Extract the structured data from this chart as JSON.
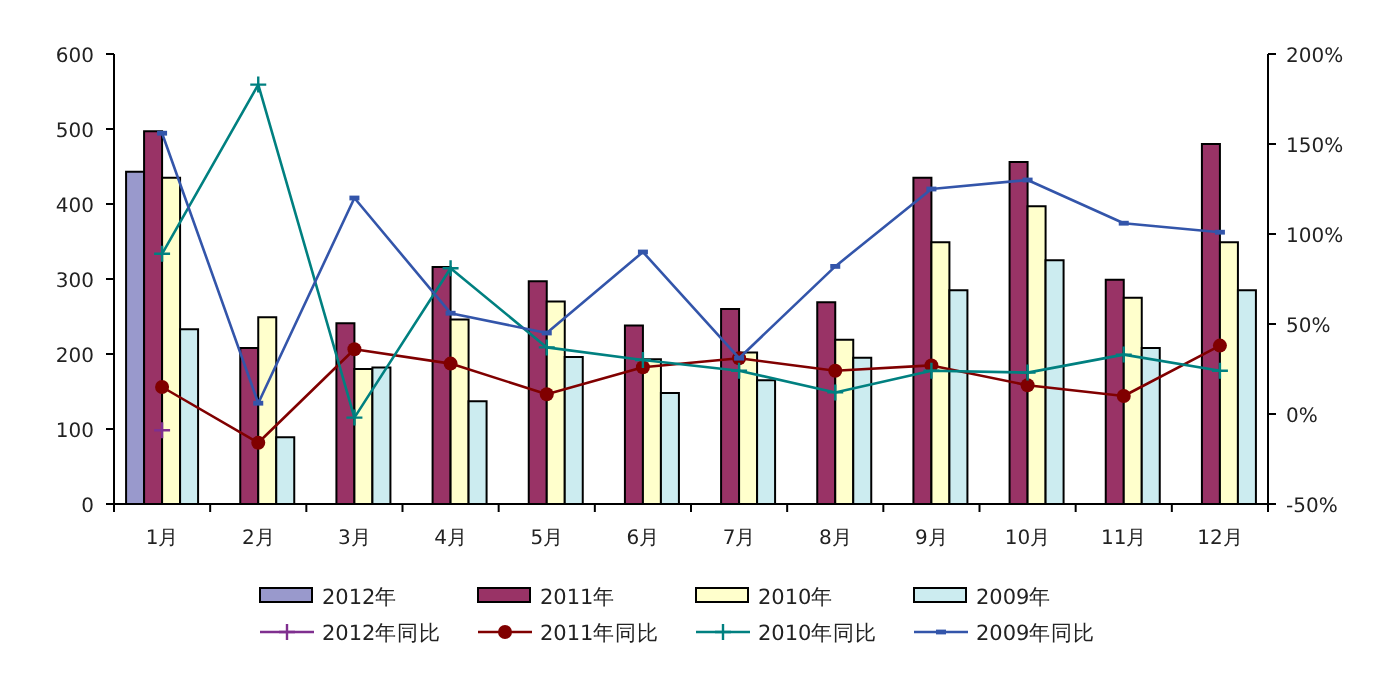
{
  "chart_data": {
    "type": "bar",
    "categories": [
      "1月",
      "2月",
      "3月",
      "4月",
      "5月",
      "6月",
      "7月",
      "8月",
      "9月",
      "10月",
      "11月",
      "12月"
    ],
    "series": [
      {
        "name": "2012年",
        "color": "#9999cc",
        "values": [
          443,
          null,
          null,
          null,
          null,
          null,
          null,
          null,
          null,
          null,
          null,
          null
        ]
      },
      {
        "name": "2011年",
        "color": "#993366",
        "values": [
          497,
          208,
          241,
          316,
          297,
          238,
          260,
          269,
          435,
          456,
          299,
          480
        ]
      },
      {
        "name": "2010年",
        "color": "#ffffcc",
        "values": [
          435,
          249,
          180,
          246,
          270,
          193,
          202,
          219,
          349,
          397,
          275,
          349
        ]
      },
      {
        "name": "2009年",
        "color": "#ccecf0",
        "values": [
          233,
          89,
          182,
          137,
          196,
          148,
          165,
          195,
          285,
          325,
          208,
          285
        ]
      },
      {
        "name": "2012年同比",
        "type": "line",
        "axis": "y2",
        "marker": "cross",
        "color": "#7f2f8f",
        "values": [
          -9,
          null,
          null,
          null,
          null,
          null,
          null,
          null,
          null,
          null,
          null,
          null
        ]
      },
      {
        "name": "2011年同比",
        "type": "line",
        "axis": "y2",
        "marker": "circle",
        "color": "#800000",
        "values": [
          15,
          -16,
          36,
          28,
          11,
          26,
          31,
          24,
          27,
          16,
          10,
          38
        ]
      },
      {
        "name": "2010年同比",
        "type": "line",
        "axis": "y2",
        "marker": "cross",
        "color": "#008080",
        "values": [
          89,
          183,
          -2,
          81,
          37,
          30,
          24,
          12,
          24,
          23,
          33,
          24
        ]
      },
      {
        "name": "2009年同比",
        "type": "line",
        "axis": "y2",
        "marker": "square",
        "color": "#3355aa",
        "values": [
          156,
          6,
          120,
          56,
          45,
          90,
          31,
          82,
          125,
          130,
          106,
          101
        ]
      }
    ],
    "ylim": [
      0,
      600
    ],
    "yticks": [
      0,
      100,
      200,
      300,
      400,
      500,
      600
    ],
    "y2lim": [
      -50,
      200
    ],
    "y2ticks": [
      {
        "value": -50,
        "label": "-50%"
      },
      {
        "value": 0,
        "label": "0%"
      },
      {
        "value": 50,
        "label": "50%"
      },
      {
        "value": 100,
        "label": "100%"
      },
      {
        "value": 150,
        "label": "150%"
      },
      {
        "value": 200,
        "label": "200%"
      }
    ],
    "grid": false,
    "legend": "bottom"
  }
}
